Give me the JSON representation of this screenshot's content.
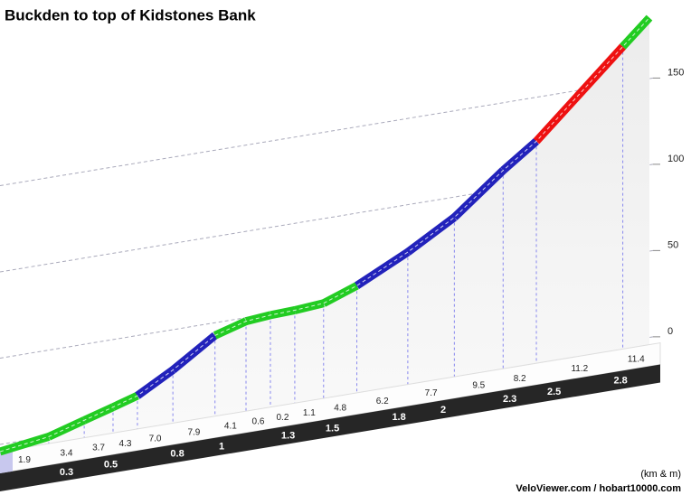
{
  "chart_data": {
    "type": "line",
    "title": "Buckden to top of Kidstones Bank",
    "x": [
      0,
      0.22,
      0.38,
      0.51,
      0.62,
      0.78,
      0.97,
      1.11,
      1.22,
      1.33,
      1.46,
      1.61,
      1.84,
      2.05,
      2.27,
      2.42,
      2.81,
      2.93
    ],
    "values": [
      0,
      4.0,
      10.1,
      15.0,
      19.3,
      30.8,
      46.8,
      52.1,
      53.3,
      53.8,
      55.1,
      62.1,
      76.7,
      92.4,
      115,
      128.7,
      175.3,
      189.5
    ],
    "segment_labels": [
      "1.9",
      "3.4",
      "3.7",
      "4.3",
      "7.0",
      "7.9",
      "4.1",
      "0.6",
      "0.2",
      "1.1",
      "4.8",
      "6.2",
      "7.7",
      "9.5",
      "8.2",
      "11.2",
      "11.4"
    ],
    "segment_colors": [
      "#22cc22",
      "#22cc22",
      "#22cc22",
      "#22cc22",
      "#2222bb",
      "#2222bb",
      "#22cc22",
      "#22cc22",
      "#22cc22",
      "#22cc22",
      "#22cc22",
      "#2222bb",
      "#2222bb",
      "#2222bb",
      "#2222bb",
      "#ee1111",
      "#22cc22"
    ],
    "distance_markers": [
      0.3,
      0.5,
      0.8,
      1,
      1.3,
      1.5,
      1.8,
      2,
      2.3,
      2.5,
      2.8
    ],
    "xlim": [
      0,
      2.93
    ],
    "ylim": [
      0,
      190
    ],
    "yticks": [
      0,
      50,
      100,
      150
    ],
    "grid": true,
    "units_note": "(km & m)",
    "credit": "VeloViewer.com / hobart10000.com"
  }
}
